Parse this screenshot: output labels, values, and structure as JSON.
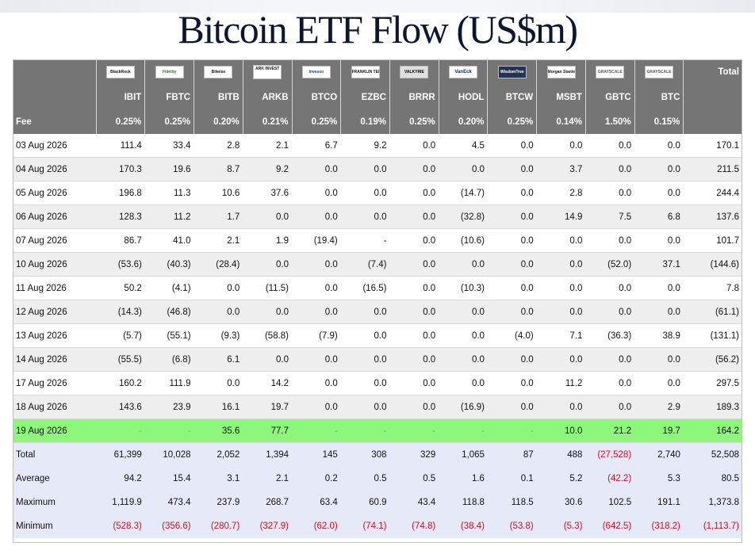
{
  "title": "Bitcoin ETF Flow (US$m)",
  "header": {
    "total_label": "Total",
    "fee_label": "Fee",
    "funds": [
      {
        "logo": "BlackRock",
        "logo_icon": "blackrock-logo",
        "ticker": "IBIT",
        "fee": "0.25%"
      },
      {
        "logo": "Fidelity",
        "logo_icon": "fidelity-logo",
        "ticker": "FBTC",
        "fee": "0.25%"
      },
      {
        "logo": "Bitwise",
        "logo_icon": "bitwise-logo",
        "ticker": "BITB",
        "fee": "0.20%"
      },
      {
        "logo": "ARK INVEST",
        "logo_icon": "ark-invest-logo",
        "ticker": "ARKB",
        "fee": "0.21%"
      },
      {
        "logo": "Invesco",
        "logo_icon": "invesco-logo",
        "ticker": "BTCO",
        "fee": "0.25%"
      },
      {
        "logo": "FRANKLIN TEMPLETON",
        "logo_icon": "franklin-templeton-logo",
        "ticker": "EZBC",
        "fee": "0.19%"
      },
      {
        "logo": "VALKYRIE",
        "logo_icon": "valkyrie-logo",
        "ticker": "BRRR",
        "fee": "0.25%"
      },
      {
        "logo": "VanEck",
        "logo_icon": "vaneck-logo",
        "ticker": "HODL",
        "fee": "0.20%"
      },
      {
        "logo": "WisdomTree",
        "logo_icon": "wisdomtree-logo",
        "ticker": "BTCW",
        "fee": "0.25%"
      },
      {
        "logo": "Morgan Stanley",
        "logo_icon": "morgan-stanley-logo",
        "ticker": "MSBT",
        "fee": "0.14%"
      },
      {
        "logo": "GRAYSCALE",
        "logo_icon": "grayscale-logo",
        "ticker": "GBTC",
        "fee": "1.50%"
      },
      {
        "logo": "GRAYSCALE",
        "logo_icon": "grayscale-logo",
        "ticker": "BTC",
        "fee": "0.15%"
      }
    ]
  },
  "rows": [
    {
      "date": "03 Aug 2026",
      "values": [
        "111.4",
        "33.4",
        "2.8",
        "2.1",
        "6.7",
        "9.2",
        "0.0",
        "4.5",
        "0.0",
        "0.0",
        "0.0",
        "0.0"
      ],
      "total": "170.1"
    },
    {
      "date": "04 Aug 2026",
      "values": [
        "170.3",
        "19.6",
        "8.7",
        "9.2",
        "0.0",
        "0.0",
        "0.0",
        "0.0",
        "0.0",
        "3.7",
        "0.0",
        "0.0"
      ],
      "total": "211.5"
    },
    {
      "date": "05 Aug 2026",
      "values": [
        "196.8",
        "11.3",
        "10.6",
        "37.6",
        "0.0",
        "0.0",
        "0.0",
        "(14.7)",
        "0.0",
        "2.8",
        "0.0",
        "0.0"
      ],
      "total": "244.4"
    },
    {
      "date": "06 Aug 2026",
      "values": [
        "128.3",
        "11.2",
        "1.7",
        "0.0",
        "0.0",
        "0.0",
        "0.0",
        "(32.8)",
        "0.0",
        "14.9",
        "7.5",
        "6.8"
      ],
      "total": "137.6"
    },
    {
      "date": "07 Aug 2026",
      "values": [
        "86.7",
        "41.0",
        "2.1",
        "1.9",
        "(19.4)",
        "-",
        "0.0",
        "(10.6)",
        "0.0",
        "0.0",
        "0.0",
        "0.0"
      ],
      "total": "101.7"
    },
    {
      "date": "10 Aug 2026",
      "values": [
        "(53.6)",
        "(40.3)",
        "(28.4)",
        "0.0",
        "0.0",
        "(7.4)",
        "0.0",
        "0.0",
        "0.0",
        "0.0",
        "(52.0)",
        "37.1"
      ],
      "total": "(144.6)"
    },
    {
      "date": "11 Aug 2026",
      "values": [
        "50.2",
        "(4.1)",
        "0.0",
        "(11.5)",
        "0.0",
        "(16.5)",
        "0.0",
        "(10.3)",
        "0.0",
        "0.0",
        "0.0",
        "0.0"
      ],
      "total": "7.8"
    },
    {
      "date": "12 Aug 2026",
      "values": [
        "(14.3)",
        "(46.8)",
        "0.0",
        "0.0",
        "0.0",
        "0.0",
        "0.0",
        "0.0",
        "0.0",
        "0.0",
        "0.0",
        "0.0"
      ],
      "total": "(61.1)"
    },
    {
      "date": "13 Aug 2026",
      "values": [
        "(5.7)",
        "(55.1)",
        "(9.3)",
        "(58.8)",
        "(7.9)",
        "0.0",
        "0.0",
        "0.0",
        "(4.0)",
        "7.1",
        "(36.3)",
        "38.9"
      ],
      "total": "(131.1)"
    },
    {
      "date": "14 Aug 2026",
      "values": [
        "(55.5)",
        "(6.8)",
        "6.1",
        "0.0",
        "0.0",
        "0.0",
        "0.0",
        "0.0",
        "0.0",
        "0.0",
        "0.0",
        "0.0"
      ],
      "total": "(56.2)"
    },
    {
      "date": "17 Aug 2026",
      "values": [
        "160.2",
        "111.9",
        "0.0",
        "14.2",
        "0.0",
        "0.0",
        "0.0",
        "0.0",
        "0.0",
        "11.2",
        "0.0",
        "0.0"
      ],
      "total": "297.5"
    },
    {
      "date": "18 Aug 2026",
      "values": [
        "143.6",
        "23.9",
        "16.1",
        "19.7",
        "0.0",
        "0.0",
        "0.0",
        "(16.9)",
        "0.0",
        "0.0",
        "0.0",
        "2.9"
      ],
      "total": "189.3"
    },
    {
      "date": "19 Aug 2026",
      "values": [
        "-",
        "-",
        "35.6",
        "77.7",
        "-",
        "-",
        "-",
        "-",
        "-",
        "10.0",
        "21.2",
        "19.7"
      ],
      "total": "164.2",
      "highlight": true
    }
  ],
  "summary": [
    {
      "label": "Total",
      "values": [
        "61,399",
        "10,028",
        "2,052",
        "1,394",
        "145",
        "308",
        "329",
        "1,065",
        "87",
        "488",
        "(27,528)",
        "2,740"
      ],
      "total": "52,508"
    },
    {
      "label": "Average",
      "values": [
        "94.2",
        "15.4",
        "3.1",
        "2.1",
        "0.2",
        "0.5",
        "0.5",
        "1.6",
        "0.1",
        "5.2",
        "(42.2)",
        "5.3"
      ],
      "total": "80.5"
    },
    {
      "label": "Maximum",
      "values": [
        "1,119.9",
        "473.4",
        "237.9",
        "268.7",
        "63.4",
        "60.9",
        "43.4",
        "118.8",
        "118.5",
        "30.6",
        "102.5",
        "191.1"
      ],
      "total": "1,373.8"
    },
    {
      "label": "Minimum",
      "values": [
        "(528.3)",
        "(356.6)",
        "(280.7)",
        "(327.9)",
        "(62.0)",
        "(74.1)",
        "(74.8)",
        "(38.4)",
        "(53.8)",
        "(5.3)",
        "(642.5)",
        "(318.2)"
      ],
      "total": "(1,113.7)"
    }
  ],
  "colors": {
    "header_bg": "#757575",
    "negative": "#d40f1f",
    "zero": "#c2c2c2",
    "highlight_row": "#8cf77a",
    "summary_bg": "#e6e9f7",
    "alt_row": "#eeeeee"
  }
}
